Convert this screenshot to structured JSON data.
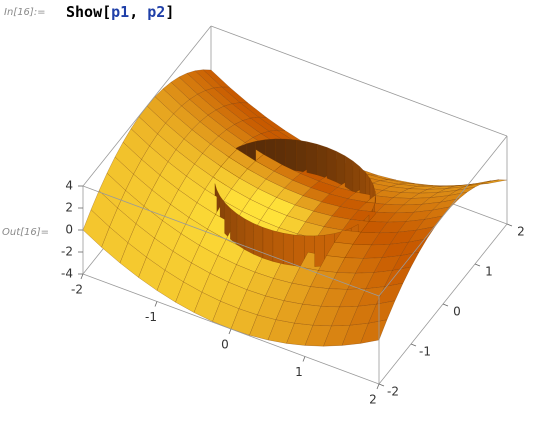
{
  "notebook": {
    "input": {
      "label": "In[16]:=",
      "segments": [
        {
          "text": "Show[",
          "role": "builtin"
        },
        {
          "text": "p1",
          "role": "variable"
        },
        {
          "text": ", ",
          "role": "builtin"
        },
        {
          "text": "p2",
          "role": "variable"
        },
        {
          "text": "]",
          "role": "builtin"
        }
      ]
    },
    "output": {
      "label": "Out[16]=",
      "plot": {
        "x_ticks": [
          -2,
          -1,
          0,
          1,
          2
        ],
        "y_ticks": [
          -2,
          -1,
          0,
          1,
          2
        ],
        "z_ticks": [
          -4,
          -2,
          0,
          2,
          4
        ]
      }
    }
  }
}
